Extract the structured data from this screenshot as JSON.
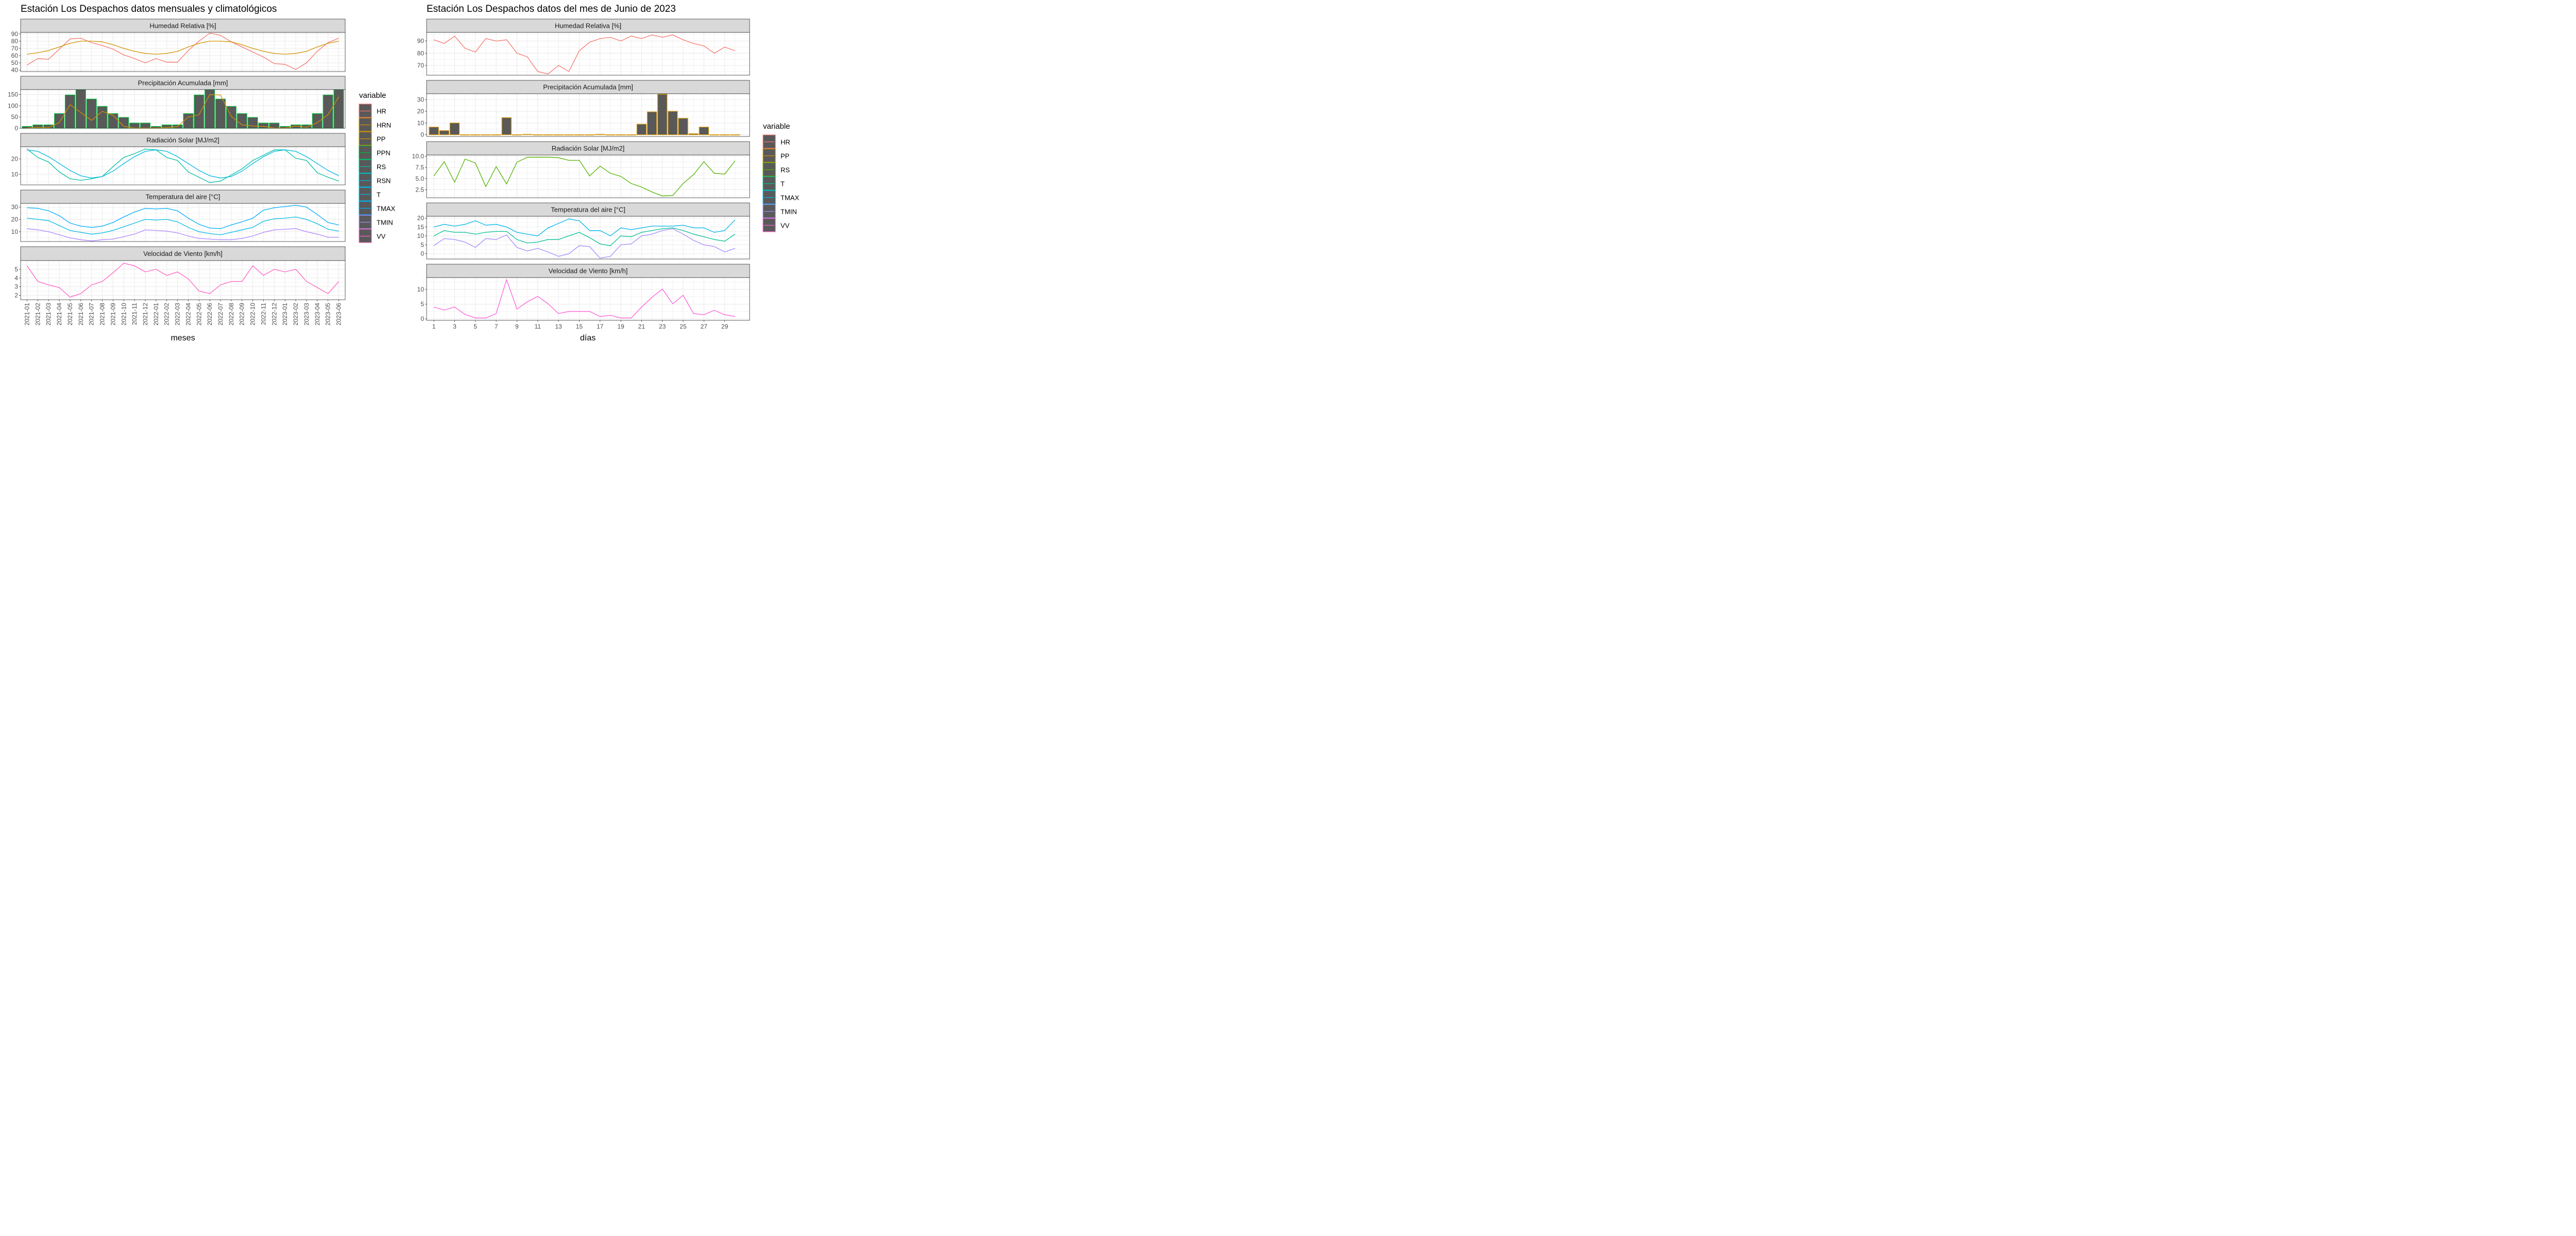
{
  "colors": {
    "HR": "#F8766D",
    "HRN": "#D39200",
    "PP": "#D39200",
    "PPN": "#00BA38",
    "RS": "#00C19F",
    "RSN": "#00B9E3",
    "T": "#00B9E3",
    "TMAX": "#00ADFA",
    "TMIN": "#AE87FF",
    "VV": "#FF61C3",
    "PP_right": "#D39200",
    "RS_right": "#53B400",
    "T_right": "#00C094",
    "TMAX_right": "#00B6EB",
    "TMIN_right": "#A58AFF",
    "VV_right": "#FB61D7"
  },
  "chart_data": [
    {
      "type": "line",
      "title": "Estación Los Despachos datos mensuales y climatológicos",
      "xlabel": "meses",
      "categories": [
        "2021-01",
        "2021-02",
        "2021-03",
        "2021-04",
        "2021-05",
        "2021-06",
        "2021-07",
        "2021-08",
        "2021-09",
        "2021-10",
        "2021-11",
        "2021-12",
        "2022-01",
        "2022-02",
        "2022-03",
        "2022-04",
        "2022-05",
        "2022-06",
        "2022-07",
        "2022-08",
        "2022-09",
        "2022-10",
        "2022-11",
        "2022-12",
        "2023-01",
        "2023-02",
        "2023-03",
        "2023-04",
        "2023-05",
        "2023-06"
      ],
      "legend": {
        "title": "variable",
        "entries": [
          "HR",
          "HRN",
          "PP",
          "PPN",
          "RS",
          "RSN",
          "T",
          "TMAX",
          "TMIN",
          "VV"
        ]
      },
      "panels": [
        {
          "strip": "Humedad Relativa [%]",
          "ylim": [
            38,
            92
          ],
          "yticks": [
            40,
            50,
            60,
            70,
            80,
            90
          ],
          "series": [
            {
              "name": "HR",
              "type": "line",
              "values": [
                47,
                56,
                55,
                69,
                83,
                84,
                78,
                74,
                69,
                61,
                56,
                50,
                56,
                51,
                51,
                67,
                80,
                91,
                88,
                79,
                72,
                65,
                58,
                49,
                48,
                41,
                50,
                66,
                78,
                84
              ]
            },
            {
              "name": "HRN",
              "type": "line",
              "values": [
                62,
                64,
                67,
                72,
                77,
                80,
                80,
                79,
                75,
                70,
                66,
                63,
                62,
                63,
                66,
                72,
                77,
                80,
                80,
                79,
                75,
                70,
                66,
                63,
                62,
                63,
                66,
                72,
                77,
                80
              ]
            }
          ]
        },
        {
          "strip": "Precipitación Acumulada [mm]",
          "ylim": [
            0,
            172
          ],
          "yticks": [
            0,
            50,
            100,
            150
          ],
          "series": [
            {
              "name": "PP",
              "type": "bar",
              "values": [
                8,
                15,
                15,
                65,
                148,
                172,
                130,
                97,
                65,
                48,
                23,
                23,
                8,
                15,
                15,
                65,
                148,
                172,
                130,
                97,
                65,
                48,
                23,
                23,
                8,
                15,
                15,
                65,
                148,
                172
              ]
            },
            {
              "name": "HRN_line",
              "type": "line",
              "values": [
                1,
                4,
                3,
                25,
                105,
                70,
                35,
                75,
                58,
                8,
                1,
                1,
                1,
                3,
                7,
                50,
                60,
                150,
                148,
                53,
                15,
                10,
                8,
                1,
                1,
                10,
                4,
                25,
                60,
                140
              ]
            }
          ]
        },
        {
          "strip": "Radiación Solar [MJ/m2]",
          "ylim": [
            3,
            28
          ],
          "yticks": [
            10,
            20
          ],
          "series": [
            {
              "name": "RS",
              "type": "line",
              "values": [
                26.5,
                21,
                18,
                11.5,
                7,
                6,
                7,
                8.5,
                15,
                21,
                23.5,
                26.5,
                26,
                21,
                19,
                11.5,
                8,
                4.5,
                5.5,
                9.5,
                13.5,
                19,
                22.5,
                26,
                26,
                20.5,
                19,
                11,
                8,
                5.5
              ]
            },
            {
              "name": "RSN",
              "type": "line",
              "values": [
                26,
                25,
                21.5,
                17,
                12.5,
                9,
                7.5,
                8.5,
                12,
                17,
                21.5,
                25,
                26,
                25,
                21.5,
                17,
                12.5,
                9,
                7.5,
                8.5,
                12,
                17,
                21.5,
                25,
                26,
                25,
                21.5,
                17,
                12.5,
                9
              ]
            }
          ]
        },
        {
          "strip": "Temperatura del aire [°C]",
          "ylim": [
            2,
            33
          ],
          "yticks": [
            10,
            20,
            30
          ],
          "series": [
            {
              "name": "TMAX",
              "type": "line",
              "values": [
                29.5,
                29,
                27,
                23,
                17,
                14.5,
                13.5,
                14.5,
                17.5,
                22,
                26,
                29,
                28.5,
                29,
                27,
                21,
                16,
                13,
                12.5,
                15.5,
                18,
                21,
                27.5,
                29.5,
                30.5,
                31.5,
                30,
                24,
                17.5,
                15.5
              ]
            },
            {
              "name": "T",
              "type": "line",
              "values": [
                21,
                20,
                19,
                15,
                11,
                9.5,
                8,
                9,
                11,
                14,
                17,
                20,
                19.5,
                20,
                18,
                13.5,
                10,
                8.5,
                7.5,
                9.5,
                11.5,
                13.5,
                18.5,
                20.5,
                21,
                22,
                20,
                16.5,
                12,
                10.5
              ]
            },
            {
              "name": "TMIN",
              "type": "line",
              "values": [
                12.5,
                11.5,
                10,
                7.5,
                5,
                3.5,
                2.5,
                3.5,
                4,
                6,
                8,
                11.5,
                11,
                10.5,
                9,
                6.5,
                4.5,
                4,
                3.5,
                3.5,
                4.5,
                6.5,
                9.5,
                11.5,
                12,
                12.5,
                10,
                8,
                5.5,
                5.5
              ]
            }
          ]
        },
        {
          "strip": "Velocidad de Viento [km/h]",
          "ylim": [
            1.5,
            6.0
          ],
          "yticks": [
            2,
            3,
            4,
            5
          ],
          "series": [
            {
              "name": "VV",
              "type": "line",
              "values": [
                5.4,
                3.6,
                3.2,
                2.9,
                1.8,
                2.2,
                3.2,
                3.6,
                4.6,
                5.7,
                5.4,
                4.7,
                5.0,
                4.3,
                4.7,
                3.9,
                2.5,
                2.2,
                3.2,
                3.6,
                3.6,
                5.4,
                4.3,
                5.0,
                4.7,
                5.0,
                3.6,
                2.9,
                2.2,
                3.6
              ]
            }
          ]
        }
      ]
    },
    {
      "type": "line",
      "title": "Estación Los Despachos datos del mes de Junio de 2023",
      "xlabel": "días",
      "x": [
        1,
        2,
        3,
        4,
        5,
        6,
        7,
        8,
        9,
        10,
        11,
        12,
        13,
        14,
        15,
        16,
        17,
        18,
        19,
        20,
        21,
        22,
        23,
        24,
        25,
        26,
        27,
        28,
        29,
        30
      ],
      "xticks": [
        1,
        3,
        5,
        7,
        9,
        11,
        13,
        15,
        17,
        19,
        21,
        23,
        25,
        27,
        29
      ],
      "xlim": [
        0.3,
        31.4
      ],
      "legend": {
        "title": "variable",
        "entries": [
          "HR",
          "PP",
          "RS",
          "T",
          "TMAX",
          "TMIN",
          "VV"
        ]
      },
      "panels": [
        {
          "strip": "Humedad Relativa [%]",
          "ylim": [
            62,
            97
          ],
          "yticks": [
            70,
            80,
            90
          ],
          "series": [
            {
              "name": "HR",
              "type": "line",
              "values": [
                91,
                88,
                94,
                84,
                81,
                92,
                90,
                91,
                80,
                77,
                65,
                63,
                70,
                65,
                82,
                89,
                92,
                93,
                90,
                94,
                92,
                95,
                93,
                95,
                91,
                88,
                86,
                80,
                85,
                82
              ]
            }
          ]
        },
        {
          "strip": "Precipitación Acumulada [mm]",
          "ylim": [
            -1.5,
            35
          ],
          "yticks": [
            0,
            10,
            20,
            30
          ],
          "series": [
            {
              "name": "PP",
              "type": "bar",
              "values": [
                6.5,
                3.5,
                10,
                0,
                0,
                0,
                0,
                14.5,
                0,
                0.3,
                0,
                0,
                0,
                0,
                0,
                0,
                0.3,
                0,
                0,
                0,
                9,
                19.5,
                34.5,
                20,
                14,
                0.8,
                6.5,
                0,
                0,
                0
              ]
            }
          ]
        },
        {
          "strip": "Radiación Solar [MJ/m2]",
          "ylim": [
            0.7,
            10.3
          ],
          "yticks": [
            2.5,
            5.0,
            7.5,
            10.0
          ],
          "series": [
            {
              "name": "RS",
              "type": "line",
              "values": [
                5.6,
                8.8,
                4.2,
                9.4,
                8.5,
                3.2,
                7.7,
                3.8,
                8.7,
                9.8,
                9.8,
                9.8,
                9.7,
                9.1,
                9.1,
                5.6,
                7.8,
                6.2,
                5.5,
                3.9,
                3.1,
                2.0,
                1.1,
                1.2,
                3.9,
                5.9,
                8.8,
                6.2,
                6.0,
                9.0
              ]
            }
          ]
        },
        {
          "strip": "Temperatura del aire [°C]",
          "ylim": [
            -3,
            21
          ],
          "yticks": [
            0,
            5,
            10,
            15,
            20
          ],
          "series": [
            {
              "name": "TMAX",
              "type": "line",
              "values": [
                15,
                16.5,
                15.5,
                16.5,
                18.5,
                16,
                16.5,
                15,
                12,
                11,
                10,
                14.5,
                17,
                19.5,
                18.5,
                13,
                13,
                10,
                14.5,
                13.5,
                14.5,
                15.5,
                15.5,
                15.5,
                16,
                14.5,
                14.5,
                12,
                13,
                19
              ]
            },
            {
              "name": "T",
              "type": "line",
              "values": [
                10,
                13,
                12,
                12,
                11,
                12,
                12.5,
                12.5,
                8,
                6,
                6.5,
                8,
                8,
                10,
                12,
                9,
                5.5,
                4.5,
                10,
                9.5,
                12,
                13,
                14,
                14.5,
                13,
                11,
                9.5,
                8,
                7,
                11
              ]
            },
            {
              "name": "TMIN",
              "type": "line",
              "values": [
                4.5,
                8.5,
                8,
                6.5,
                3.5,
                8.5,
                8,
                10.5,
                3.5,
                1.5,
                3,
                1,
                -1.5,
                0,
                4.5,
                4,
                -2.5,
                -1.5,
                5,
                5.5,
                10,
                11,
                13,
                14,
                11,
                7.5,
                5,
                4,
                1,
                3
              ]
            }
          ]
        },
        {
          "strip": "Velocidad de Viento [km/h]",
          "ylim": [
            -0.5,
            14
          ],
          "yticks": [
            0,
            5,
            10
          ],
          "series": [
            {
              "name": "VV",
              "type": "line",
              "values": [
                4,
                3,
                4,
                1.5,
                0.3,
                0.3,
                1.8,
                13.3,
                3.3,
                5.8,
                7.6,
                5.1,
                1.8,
                2.5,
                2.5,
                2.5,
                0.8,
                1.2,
                0.3,
                0.3,
                4,
                7.3,
                10.1,
                5.1,
                8,
                1.8,
                1.4,
                2.9,
                1.4,
                0.8
              ]
            }
          ]
        }
      ]
    }
  ]
}
